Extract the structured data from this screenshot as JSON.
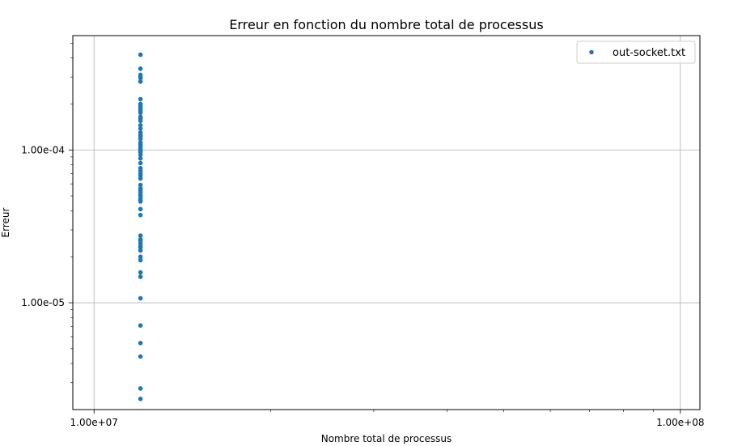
{
  "chart_data": {
    "type": "scatter",
    "title": "Erreur en fonction du nombre total de processus",
    "xlabel": "Nombre total de processus",
    "ylabel": "Erreur",
    "xscale": "log",
    "yscale": "log",
    "xlim": [
      9200000,
      108000000
    ],
    "ylim": [
      2e-06,
      0.00056
    ],
    "x_ticks": [
      10000000,
      100000000
    ],
    "x_tick_labels": [
      "1.00e+07",
      "1.00e+08"
    ],
    "y_ticks": [
      1e-05,
      0.0001
    ],
    "y_tick_labels": [
      "1.00e-05",
      "1.00e-04"
    ],
    "grid": true,
    "legend_position": "top-right",
    "series": [
      {
        "name": "out-socket.txt",
        "color": "#1f77b4",
        "x": [
          12000000,
          12000000,
          12000000,
          12000000,
          12000000,
          12000000,
          12000000,
          12000000,
          12000000,
          12000000,
          12000000,
          12000000,
          12000000,
          12000000,
          12000000,
          12000000,
          12000000,
          12000000,
          12000000,
          12000000,
          12000000,
          12000000,
          12000000,
          12000000,
          12000000,
          12000000,
          12000000,
          12000000,
          12000000,
          12000000,
          12000000,
          12000000,
          12000000,
          12000000,
          12000000,
          12000000,
          12000000,
          12000000,
          12000000,
          12000000,
          12000000,
          12000000,
          12000000,
          12000000,
          12000000,
          12000000,
          12000000,
          12000000,
          12000000,
          12000000,
          12000000,
          12000000,
          12000000,
          12000000,
          12000000,
          12000000,
          12000000,
          12000000,
          12000000,
          12000000,
          12000000,
          12000000,
          12000000,
          12000000
        ],
        "y": [
          0.00042,
          0.00034,
          0.00031,
          0.000295,
          0.00028,
          0.000215,
          0.0002,
          0.00019,
          0.00018,
          0.000175,
          0.00016,
          0.000155,
          0.000145,
          0.000138,
          0.00013,
          0.000125,
          0.000118,
          0.000112,
          0.000106,
          0.000102,
          9.7e-05,
          9.3e-05,
          8.8e-05,
          8.2e-05,
          7.6e-05,
          7.3e-05,
          7e-05,
          6.5e-05,
          5.9e-05,
          5.6e-05,
          5.3e-05,
          5e-05,
          4.8e-05,
          4.6e-05,
          4.1e-05,
          3.75e-05,
          2.75e-05,
          2.6e-05,
          2.45e-05,
          2.35e-05,
          2.2e-05,
          2e-05,
          1.9e-05,
          1.58e-05,
          1.48e-05,
          1.07e-05,
          7.1e-06,
          5.45e-06,
          4.45e-06,
          2.75e-06,
          2.35e-06,
          0.000165,
          0.000122,
          0.000109,
          9.9e-05,
          6.8e-05,
          5.45e-05,
          5.1e-05,
          4.7e-05,
          2.3e-05,
          2.55e-05,
          0.000195,
          0.000185,
          0.0003
        ]
      }
    ]
  }
}
